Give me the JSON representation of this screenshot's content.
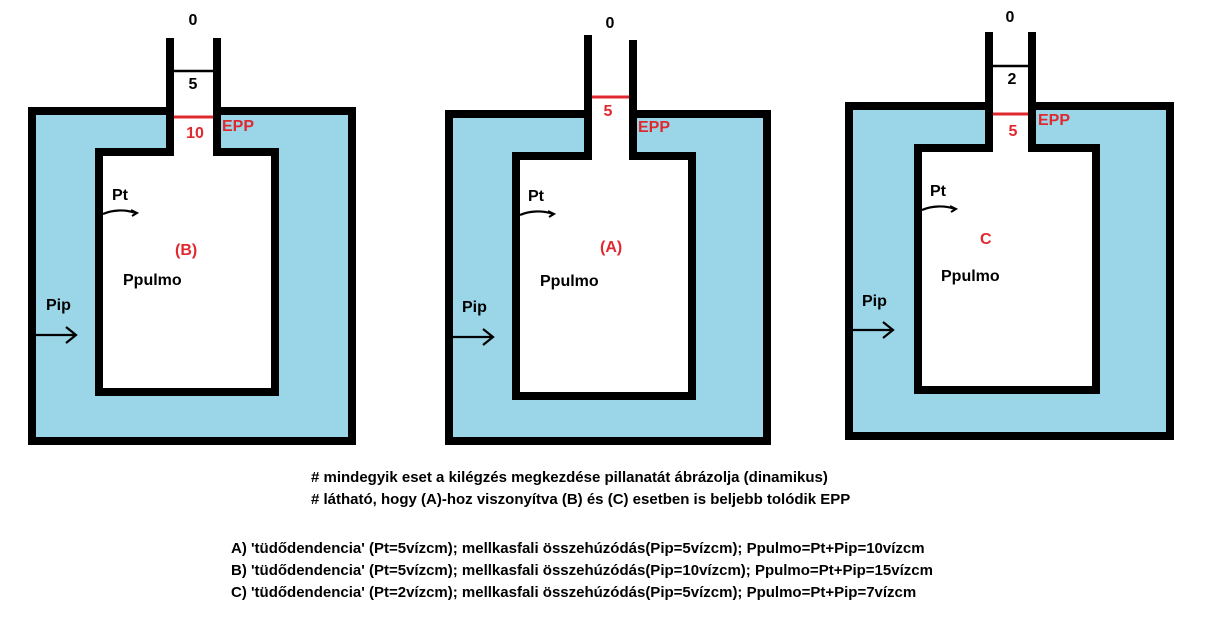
{
  "colors": {
    "fluid": "#9ad6e8",
    "outline": "#000000",
    "epp_line": "#e0282f",
    "label_red": "#e0282f"
  },
  "diagrams": [
    {
      "top_value": "0",
      "upper_value": "5",
      "epp_value": "10",
      "epp_label": "EPP",
      "case_label": "(B)",
      "pt_label": "Pt",
      "lung_label": "Ppulmo",
      "pip_label": "Pip"
    },
    {
      "top_value": "0",
      "upper_value": "",
      "epp_value": "5",
      "epp_label": "EPP",
      "case_label": "(A)",
      "pt_label": "Pt",
      "lung_label": "Ppulmo",
      "pip_label": "Pip"
    },
    {
      "top_value": "0",
      "upper_value": "2",
      "epp_value": "5",
      "epp_label": "EPP",
      "case_label": "C",
      "pt_label": "Pt",
      "lung_label": "Ppulmo",
      "pip_label": "Pip"
    }
  ],
  "notes": {
    "line1": "# mindegyik eset a kilégzés megkezdése pillanatát ábrázolja (dinamikus)",
    "line2": "# látható, hogy (A)-hoz viszonyítva (B) és (C) esetben is beljebb tolódik EPP",
    "case_a": "A) 'tüdődendencia' (Pt=5vízcm); mellkasfali összehúzódás(Pip=5vízcm); Ppulmo=Pt+Pip=10vízcm",
    "case_b": "B) 'tüdődendencia' (Pt=5vízcm); mellkasfali összehúzódás(Pip=10vízcm); Ppulmo=Pt+Pip=15vízcm",
    "case_c": "C) 'tüdődendencia' (Pt=2vízcm); mellkasfali összehúzódás(Pip=5vízcm); Ppulmo=Pt+Pip=7vízcm"
  }
}
